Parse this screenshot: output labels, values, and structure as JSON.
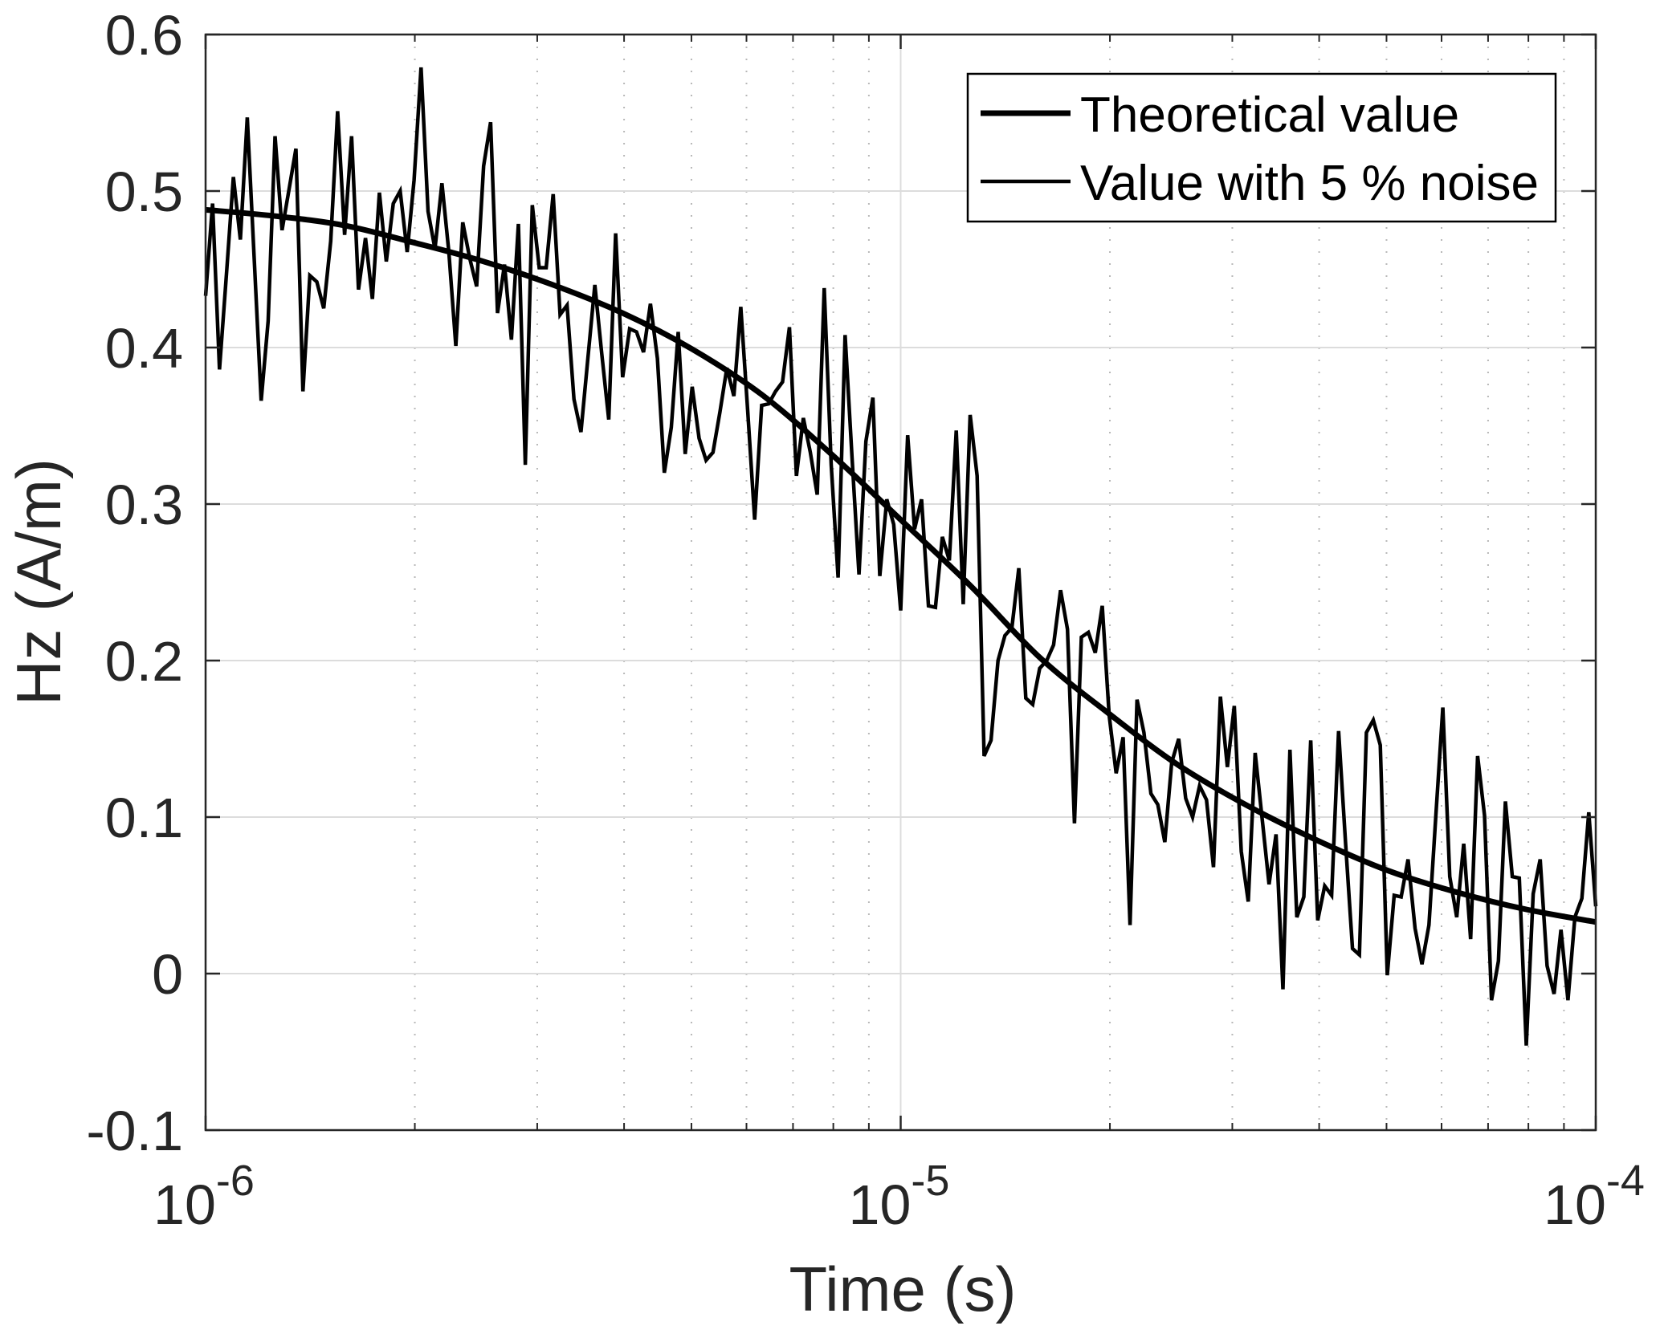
{
  "chart_data": {
    "type": "line",
    "title": "",
    "xlabel": "Time (s)",
    "ylabel": "Hz (A/m)",
    "xscale": "log",
    "xlim": [
      1e-06,
      0.0001
    ],
    "ylim": [
      -0.1,
      0.6
    ],
    "grid": true,
    "minor_grid_x": true,
    "legend_position": "top-right",
    "x_ticks": [
      {
        "value": 1e-06,
        "base": "10",
        "exp": "-6"
      },
      {
        "value": 1e-05,
        "base": "10",
        "exp": "-5"
      },
      {
        "value": 0.0001,
        "base": "10",
        "exp": "-4"
      }
    ],
    "y_ticks": [
      {
        "value": -0.1,
        "label": "-0.1"
      },
      {
        "value": 0,
        "label": "0"
      },
      {
        "value": 0.1,
        "label": "0.1"
      },
      {
        "value": 0.2,
        "label": "0.2"
      },
      {
        "value": 0.3,
        "label": "0.3"
      },
      {
        "value": 0.4,
        "label": "0.4"
      },
      {
        "value": 0.5,
        "label": "0.5"
      },
      {
        "value": 0.6,
        "label": "0.6"
      }
    ],
    "series": [
      {
        "name": "Theoretical value",
        "style": "thick",
        "color": "#000000",
        "x_log10": [
          -6.0,
          -5.9,
          -5.8,
          -5.7,
          -5.6,
          -5.5,
          -5.4,
          -5.3,
          -5.2,
          -5.1,
          -5.0,
          -4.9,
          -4.8,
          -4.7,
          -4.6,
          -4.5,
          -4.4,
          -4.3,
          -4.2,
          -4.1,
          -4.0
        ],
        "values": [
          0.488,
          0.484,
          0.478,
          0.467,
          0.455,
          0.44,
          0.422,
          0.399,
          0.37,
          0.332,
          0.29,
          0.248,
          0.202,
          0.166,
          0.133,
          0.107,
          0.085,
          0.066,
          0.052,
          0.041,
          0.033
        ]
      },
      {
        "name": "Value with 5 % noise",
        "style": "thin",
        "color": "#000000",
        "x_log10_start": -6,
        "x_log10_end": -4,
        "count": 201,
        "values": [
          0.433,
          0.492,
          0.386,
          0.447,
          0.509,
          0.469,
          0.547,
          0.456,
          0.366,
          0.417,
          0.535,
          0.475,
          0.501,
          0.527,
          0.372,
          0.446,
          0.442,
          0.425,
          0.468,
          0.551,
          0.472,
          0.535,
          0.437,
          0.47,
          0.431,
          0.499,
          0.455,
          0.492,
          0.5,
          0.461,
          0.507,
          0.579,
          0.487,
          0.463,
          0.505,
          0.461,
          0.401,
          0.48,
          0.457,
          0.439,
          0.516,
          0.544,
          0.422,
          0.453,
          0.405,
          0.479,
          0.325,
          0.491,
          0.451,
          0.451,
          0.498,
          0.421,
          0.427,
          0.367,
          0.346,
          0.393,
          0.44,
          0.396,
          0.354,
          0.473,
          0.381,
          0.412,
          0.41,
          0.397,
          0.428,
          0.393,
          0.32,
          0.349,
          0.41,
          0.332,
          0.375,
          0.342,
          0.328,
          0.333,
          0.359,
          0.387,
          0.369,
          0.426,
          0.359,
          0.29,
          0.363,
          0.364,
          0.372,
          0.378,
          0.413,
          0.318,
          0.355,
          0.333,
          0.306,
          0.438,
          0.325,
          0.253,
          0.408,
          0.33,
          0.255,
          0.34,
          0.368,
          0.254,
          0.303,
          0.287,
          0.232,
          0.344,
          0.284,
          0.303,
          0.235,
          0.234,
          0.279,
          0.264,
          0.347,
          0.236,
          0.357,
          0.318,
          0.139,
          0.149,
          0.2,
          0.216,
          0.221,
          0.259,
          0.176,
          0.172,
          0.195,
          0.2,
          0.21,
          0.245,
          0.22,
          0.096,
          0.215,
          0.218,
          0.205,
          0.235,
          0.165,
          0.128,
          0.151,
          0.031,
          0.175,
          0.154,
          0.115,
          0.108,
          0.084,
          0.135,
          0.15,
          0.112,
          0.1,
          0.12,
          0.111,
          0.068,
          0.177,
          0.132,
          0.171,
          0.078,
          0.046,
          0.141,
          0.099,
          0.057,
          0.089,
          -0.01,
          0.143,
          0.036,
          0.049,
          0.149,
          0.034,
          0.056,
          0.05,
          0.155,
          0.084,
          0.016,
          0.012,
          0.154,
          0.162,
          0.146,
          -0.001,
          0.05,
          0.049,
          0.073,
          0.029,
          0.006,
          0.031,
          0.101,
          0.17,
          0.062,
          0.036,
          0.083,
          0.022,
          0.139,
          0.101,
          -0.017,
          0.008,
          0.11,
          0.062,
          0.061,
          -0.046,
          0.051,
          0.073,
          0.005,
          -0.013,
          0.028,
          -0.017,
          0.036,
          0.048,
          0.103,
          0.043
        ]
      }
    ],
    "legend": [
      {
        "label": "Theoretical value",
        "style": "thick"
      },
      {
        "label": "Value with 5 % noise",
        "style": "thin"
      }
    ]
  },
  "colors": {
    "axis": "#262626",
    "major_grid": "#dcdcdc",
    "minor_grid": "#b8b8b8",
    "line": "#000000",
    "background": "#ffffff"
  }
}
